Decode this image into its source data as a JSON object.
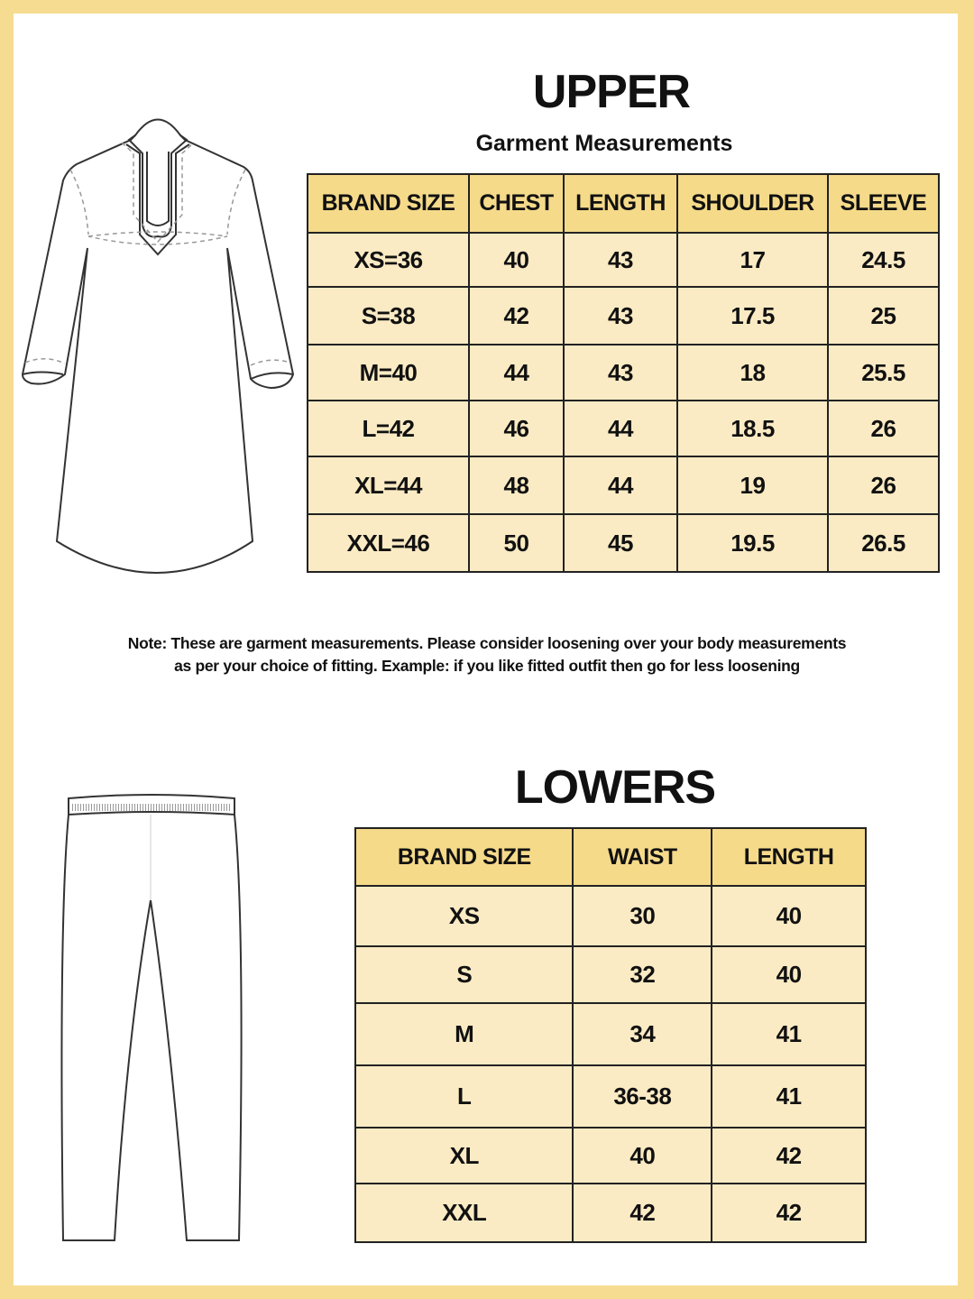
{
  "colors": {
    "frame": "#f5dc90",
    "header_fill": "#f5da8a",
    "cell_fill": "#fbebc4"
  },
  "upper": {
    "title": "UPPER",
    "subtitle": "Garment Measurements",
    "columns": [
      "BRAND SIZE",
      "CHEST",
      "LENGTH",
      "SHOULDER",
      "SLEEVE"
    ],
    "rows": [
      [
        "XS=36",
        "40",
        "43",
        "17",
        "24.5"
      ],
      [
        "S=38",
        "42",
        "43",
        "17.5",
        "25"
      ],
      [
        "M=40",
        "44",
        "43",
        "18",
        "25.5"
      ],
      [
        "L=42",
        "46",
        "44",
        "18.5",
        "26"
      ],
      [
        "XL=44",
        "48",
        "44",
        "19",
        "26"
      ],
      [
        "XXL=46",
        "50",
        "45",
        "19.5",
        "26.5"
      ]
    ]
  },
  "note": {
    "line1": "Note: These are garment measurements. Please consider loosening over your body measurements",
    "line2": "as per your choice of fitting. Example: if you like fitted outfit then go for less loosening"
  },
  "lowers": {
    "title": "LOWERS",
    "columns": [
      "BRAND SIZE",
      "WAIST",
      "LENGTH"
    ],
    "rows": [
      [
        "XS",
        "30",
        "40"
      ],
      [
        "S",
        "32",
        "40"
      ],
      [
        "M",
        "34",
        "41"
      ],
      [
        "L",
        "36-38",
        "41"
      ],
      [
        "XL",
        "40",
        "42"
      ],
      [
        "XXL",
        "42",
        "42"
      ]
    ]
  }
}
